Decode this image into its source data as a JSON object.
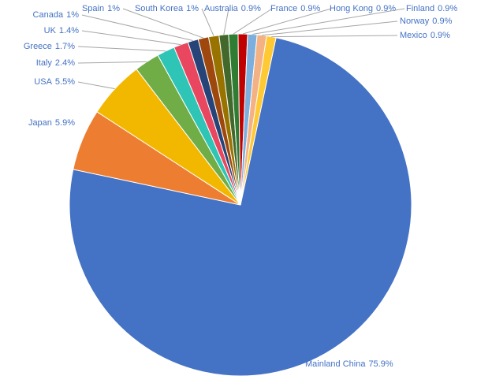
{
  "chart_data": {
    "type": "pie",
    "categories": [
      "Mainland China",
      "Japan",
      "USA",
      "Italy",
      "Greece",
      "UK",
      "Canada",
      "Spain",
      "South Korea",
      "Australia",
      "France",
      "Hong Kong",
      "Finland",
      "Norway",
      "Mexico"
    ],
    "values": [
      75.9,
      5.9,
      5.5,
      2.4,
      1.7,
      1.4,
      1,
      1,
      1,
      0.9,
      0.9,
      0.9,
      0.9,
      0.9,
      0.9
    ],
    "value_labels": [
      "75.9%",
      "5.9%",
      "5.5%",
      "2.4%",
      "1.7%",
      "1.4%",
      "1%",
      "1%",
      "1%",
      "0.9%",
      "0.9%",
      "0.9%",
      "0.9%",
      "0.9%",
      "0.9%"
    ],
    "colors": [
      "#4472c4",
      "#ed7d31",
      "#f2b800",
      "#70ad47",
      "#2ec4b6",
      "#e8475f",
      "#264478",
      "#9e480e",
      "#997300",
      "#43682b",
      "#2e7d32",
      "#c00000",
      "#7cafdd",
      "#f4b183",
      "#ffc933"
    ]
  }
}
